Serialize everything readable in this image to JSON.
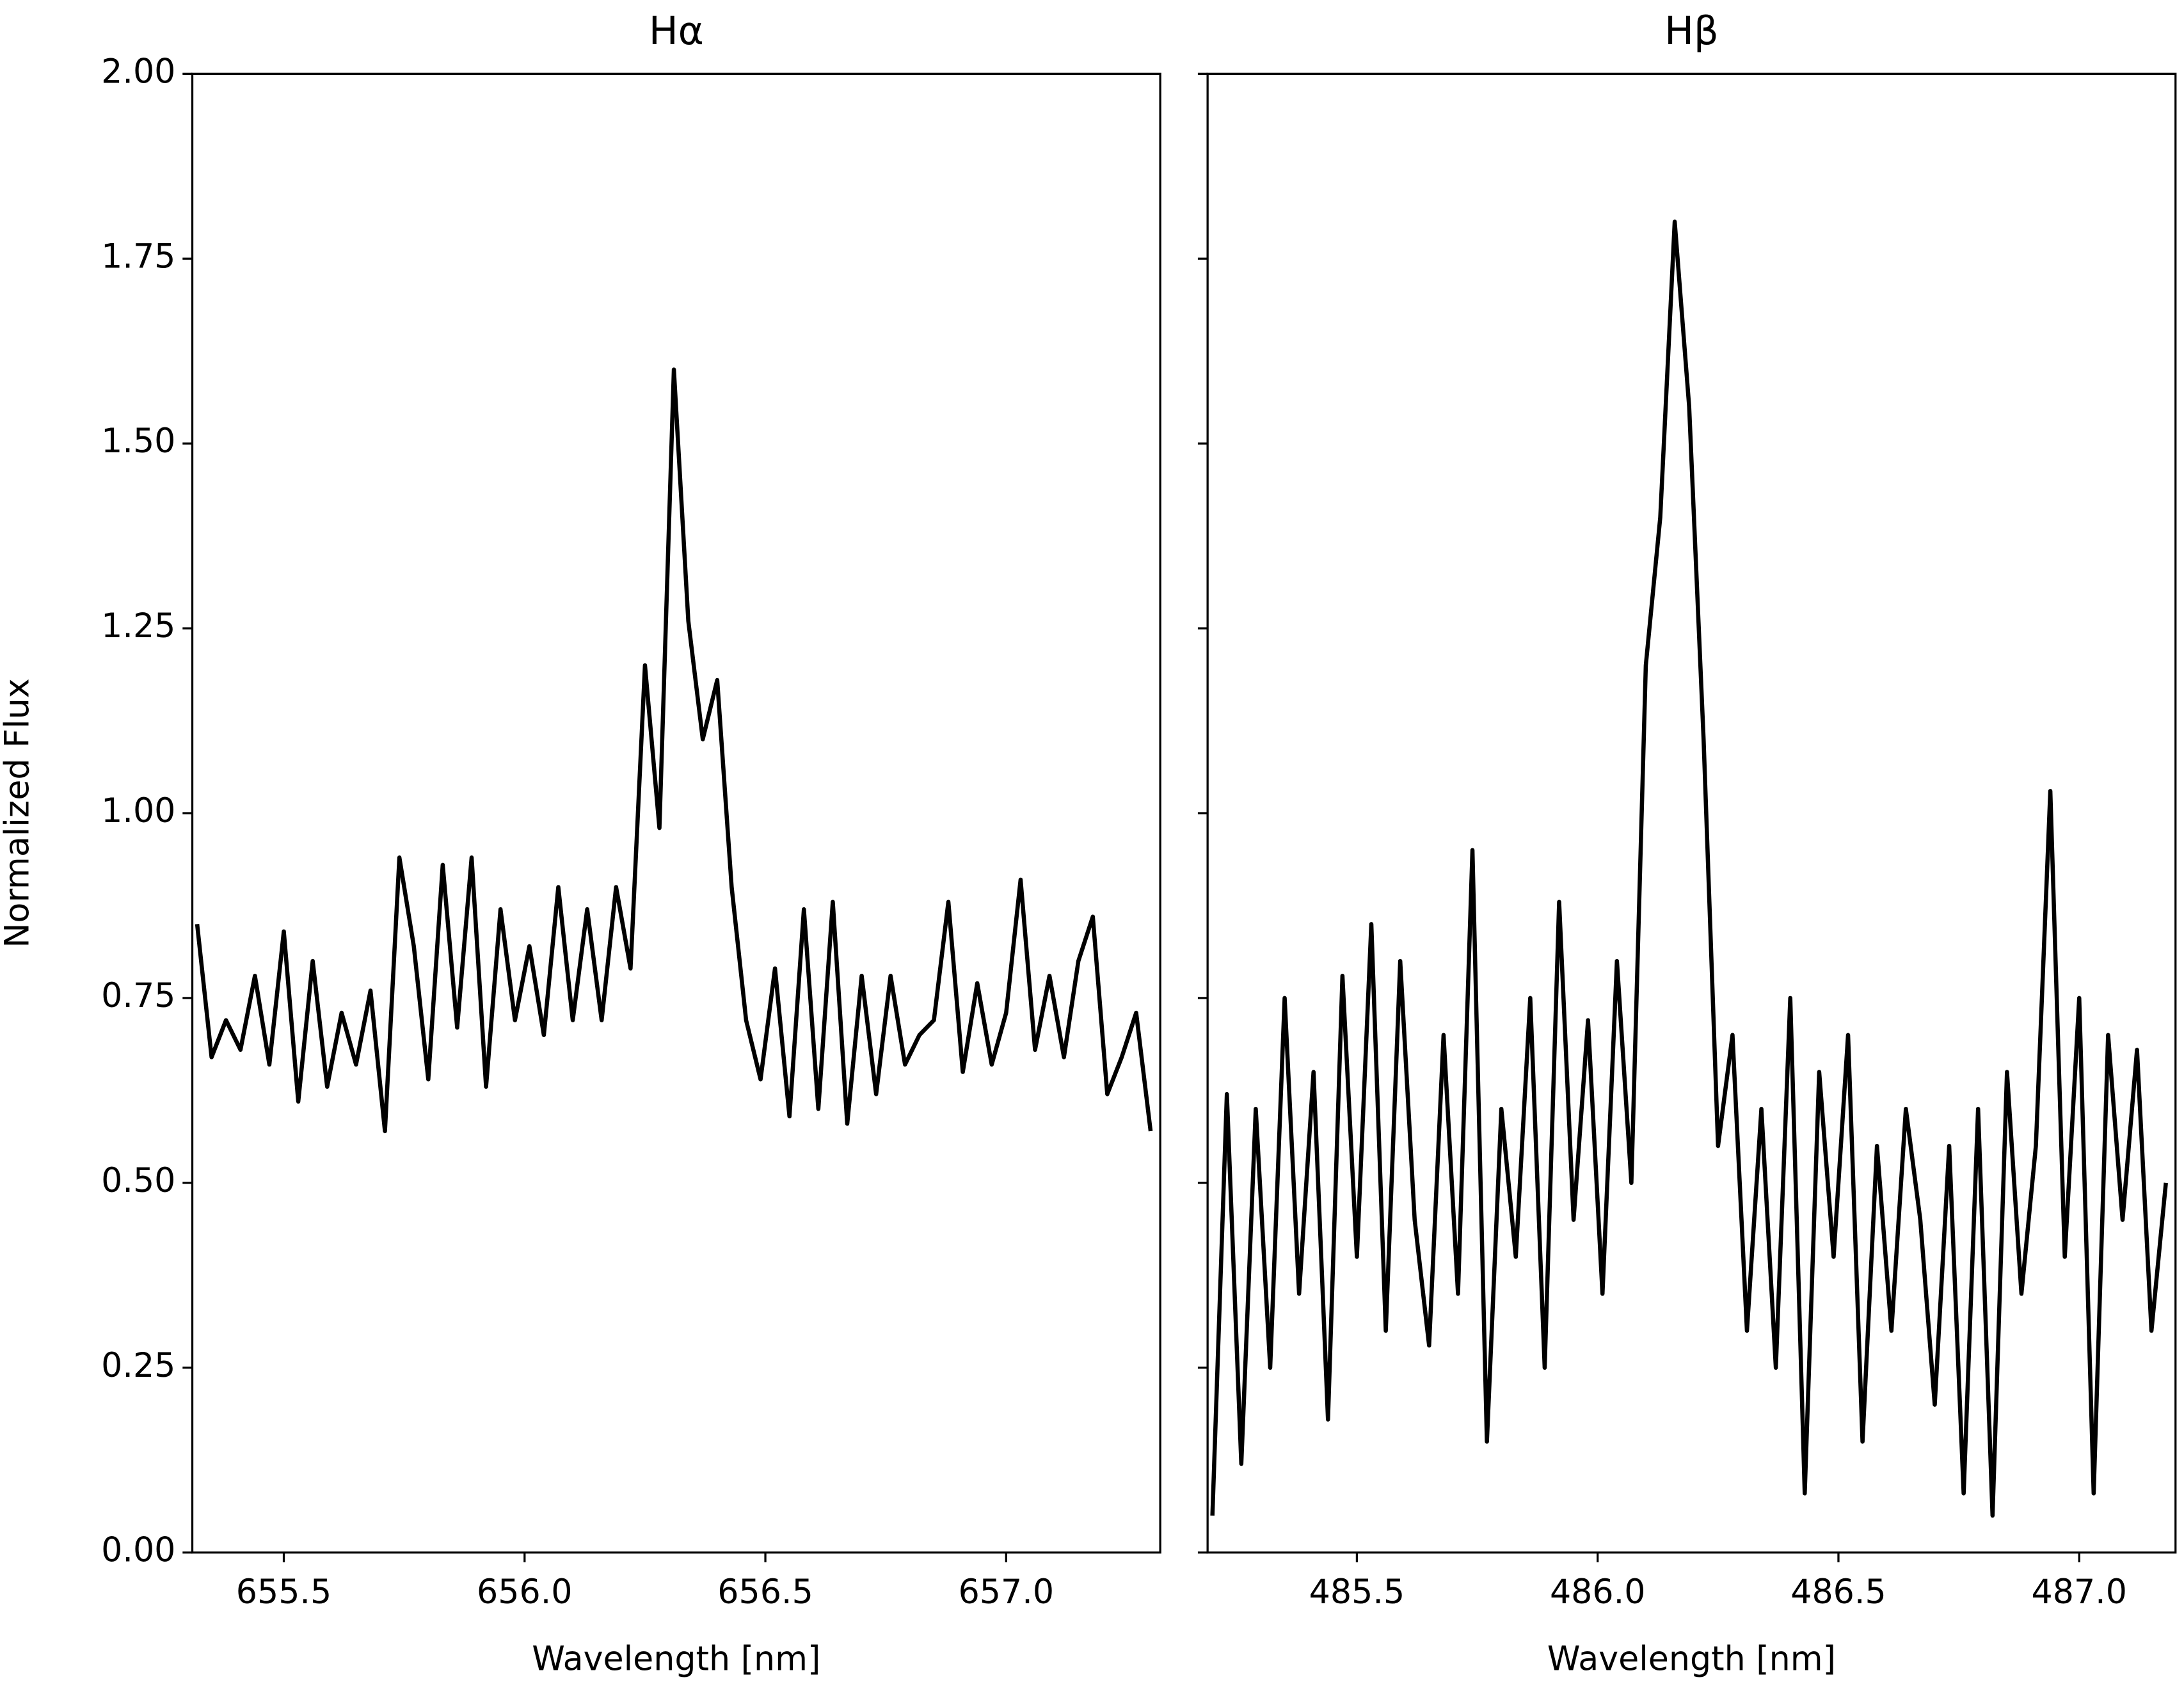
{
  "chart_data": [
    {
      "type": "line",
      "title": "Hα",
      "xlabel": "Wavelength [nm]",
      "ylabel": "Normalized Flux",
      "xlim": [
        655.31,
        657.32
      ],
      "ylim": [
        0,
        2
      ],
      "xticks": [
        {
          "value": 655.5,
          "label": "655.5"
        },
        {
          "value": 656,
          "label": "656.0"
        },
        {
          "value": 656.5,
          "label": "656.5"
        },
        {
          "value": 657,
          "label": "657.0"
        }
      ],
      "yticks": [
        {
          "value": 0,
          "label": "0.00"
        },
        {
          "value": 0.25,
          "label": "0.25"
        },
        {
          "value": 0.5,
          "label": "0.50"
        },
        {
          "value": 0.75,
          "label": "0.75"
        },
        {
          "value": 1,
          "label": "1.00"
        },
        {
          "value": 1.25,
          "label": "1.25"
        },
        {
          "value": 1.5,
          "label": "1.50"
        },
        {
          "value": 1.75,
          "label": "1.75"
        },
        {
          "value": 2,
          "label": "2.00"
        }
      ],
      "color": "#000000",
      "x": [
        655.32,
        655.35,
        655.38,
        655.41,
        655.44,
        655.47,
        655.5,
        655.53,
        655.56,
        655.59,
        655.62,
        655.65,
        655.68,
        655.71,
        655.74,
        655.77,
        655.8,
        655.83,
        655.86,
        655.89,
        655.92,
        655.95,
        655.98,
        656.01,
        656.04,
        656.07,
        656.1,
        656.13,
        656.16,
        656.19,
        656.22,
        656.25,
        656.28,
        656.31,
        656.34,
        656.37,
        656.4,
        656.43,
        656.46,
        656.49,
        656.52,
        656.55,
        656.58,
        656.61,
        656.64,
        656.67,
        656.7,
        656.73,
        656.76,
        656.79,
        656.82,
        656.85,
        656.88,
        656.91,
        656.94,
        656.97,
        657.0,
        657.03,
        657.06,
        657.09,
        657.12,
        657.15,
        657.18,
        657.21,
        657.24,
        657.27,
        657.3
      ],
      "values": [
        0.85,
        0.67,
        0.72,
        0.68,
        0.78,
        0.66,
        0.84,
        0.61,
        0.8,
        0.63,
        0.73,
        0.66,
        0.76,
        0.57,
        0.94,
        0.82,
        0.64,
        0.93,
        0.71,
        0.94,
        0.63,
        0.87,
        0.72,
        0.82,
        0.7,
        0.9,
        0.72,
        0.87,
        0.72,
        0.9,
        0.79,
        1.2,
        0.98,
        1.6,
        1.26,
        1.1,
        1.18,
        0.9,
        0.72,
        0.64,
        0.79,
        0.59,
        0.87,
        0.6,
        0.88,
        0.58,
        0.78,
        0.62,
        0.78,
        0.66,
        0.7,
        0.72,
        0.88,
        0.65,
        0.77,
        0.66,
        0.73,
        0.91,
        0.68,
        0.78,
        0.67,
        0.8,
        0.86,
        0.62,
        0.67,
        0.73,
        0.57
      ]
    },
    {
      "type": "line",
      "title": "Hβ",
      "xlabel": "Wavelength [nm]",
      "xlim": [
        485.19,
        487.2
      ],
      "ylim": [
        0,
        2
      ],
      "xticks": [
        {
          "value": 485.5,
          "label": "485.5"
        },
        {
          "value": 486,
          "label": "486.0"
        },
        {
          "value": 486.5,
          "label": "486.5"
        },
        {
          "value": 487,
          "label": "487.0"
        }
      ],
      "yticks": [
        0,
        0.25,
        0.5,
        0.75,
        1,
        1.25,
        1.5,
        1.75,
        2
      ],
      "color": "#000000",
      "x": [
        485.2,
        485.23,
        485.26,
        485.29,
        485.32,
        485.35,
        485.38,
        485.41,
        485.44,
        485.47,
        485.5,
        485.53,
        485.56,
        485.59,
        485.62,
        485.65,
        485.68,
        485.71,
        485.74,
        485.77,
        485.8,
        485.83,
        485.86,
        485.89,
        485.92,
        485.95,
        485.98,
        486.01,
        486.04,
        486.07,
        486.1,
        486.13,
        486.16,
        486.19,
        486.22,
        486.25,
        486.28,
        486.31,
        486.34,
        486.37,
        486.4,
        486.43,
        486.46,
        486.49,
        486.52,
        486.55,
        486.58,
        486.61,
        486.64,
        486.67,
        486.7,
        486.73,
        486.76,
        486.79,
        486.82,
        486.85,
        486.88,
        486.91,
        486.94,
        486.97,
        487.0,
        487.03,
        487.06,
        487.09,
        487.12,
        487.15,
        487.18
      ],
      "values": [
        0.05,
        0.62,
        0.12,
        0.6,
        0.25,
        0.75,
        0.35,
        0.65,
        0.18,
        0.78,
        0.4,
        0.85,
        0.3,
        0.8,
        0.45,
        0.28,
        0.7,
        0.35,
        0.95,
        0.15,
        0.6,
        0.4,
        0.75,
        0.25,
        0.88,
        0.45,
        0.72,
        0.35,
        0.8,
        0.5,
        1.2,
        1.4,
        1.8,
        1.55,
        1.1,
        0.55,
        0.7,
        0.3,
        0.6,
        0.25,
        0.75,
        0.08,
        0.65,
        0.4,
        0.7,
        0.15,
        0.55,
        0.3,
        0.6,
        0.45,
        0.2,
        0.55,
        0.08,
        0.6,
        0.05,
        0.65,
        0.35,
        0.55,
        1.03,
        0.4,
        0.75,
        0.08,
        0.7,
        0.45,
        0.68,
        0.3,
        0.5
      ]
    }
  ]
}
